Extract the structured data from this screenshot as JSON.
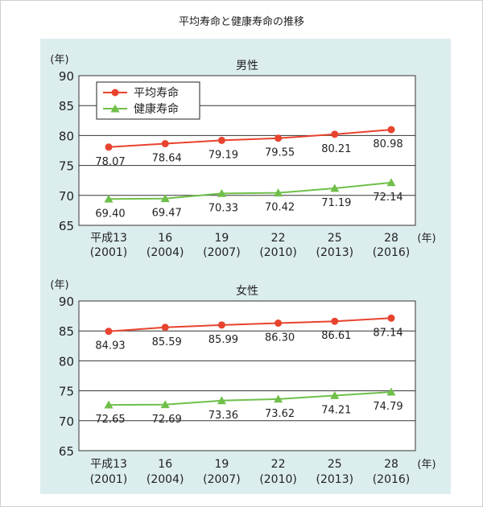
{
  "page": {
    "title": "平均寿命と健康寿命の推移"
  },
  "colors": {
    "series1": "#e8432e",
    "series2": "#6fbf4a",
    "panel_bg": "#dcedee",
    "plot_bg": "#ffffff",
    "grid": "#333333"
  },
  "chart_data": [
    {
      "type": "line",
      "title": "男性",
      "ylabel": "(年)",
      "xlabel": "(年)",
      "ylim": [
        65,
        90
      ],
      "yticks": [
        65,
        70,
        75,
        80,
        85,
        90
      ],
      "grid": true,
      "legend": "top-left",
      "categories": [
        [
          "平成13",
          "(2001)"
        ],
        [
          "16",
          "(2004)"
        ],
        [
          "19",
          "(2007)"
        ],
        [
          "22",
          "(2010)"
        ],
        [
          "25",
          "(2013)"
        ],
        [
          "28",
          "(2016)"
        ]
      ],
      "series": [
        {
          "name": "平均寿命",
          "marker": "circle",
          "values": [
            78.07,
            78.64,
            79.19,
            79.55,
            80.21,
            80.98
          ],
          "labels": [
            "78.07",
            "78.64",
            "79.19",
            "79.55",
            "80.21",
            "80.98"
          ]
        },
        {
          "name": "健康寿命",
          "marker": "triangle",
          "values": [
            69.4,
            69.47,
            70.33,
            70.42,
            71.19,
            72.14
          ],
          "labels": [
            "69.40",
            "69.47",
            "70.33",
            "70.42",
            "71.19",
            "72.14"
          ]
        }
      ]
    },
    {
      "type": "line",
      "title": "女性",
      "ylabel": "(年)",
      "xlabel": "(年)",
      "ylim": [
        65,
        90
      ],
      "yticks": [
        65,
        70,
        75,
        80,
        85,
        90
      ],
      "grid": true,
      "legend": "none",
      "categories": [
        [
          "平成13",
          "(2001)"
        ],
        [
          "16",
          "(2004)"
        ],
        [
          "19",
          "(2007)"
        ],
        [
          "22",
          "(2010)"
        ],
        [
          "25",
          "(2013)"
        ],
        [
          "28",
          "(2016)"
        ]
      ],
      "series": [
        {
          "name": "平均寿命",
          "marker": "circle",
          "values": [
            84.93,
            85.59,
            85.99,
            86.3,
            86.61,
            87.14
          ],
          "labels": [
            "84.93",
            "85.59",
            "85.99",
            "86.30",
            "86.61",
            "87.14"
          ]
        },
        {
          "name": "健康寿命",
          "marker": "triangle",
          "values": [
            72.65,
            72.69,
            73.36,
            73.62,
            74.21,
            74.79
          ],
          "labels": [
            "72.65",
            "72.69",
            "73.36",
            "73.62",
            "74.21",
            "74.79"
          ]
        }
      ]
    }
  ]
}
